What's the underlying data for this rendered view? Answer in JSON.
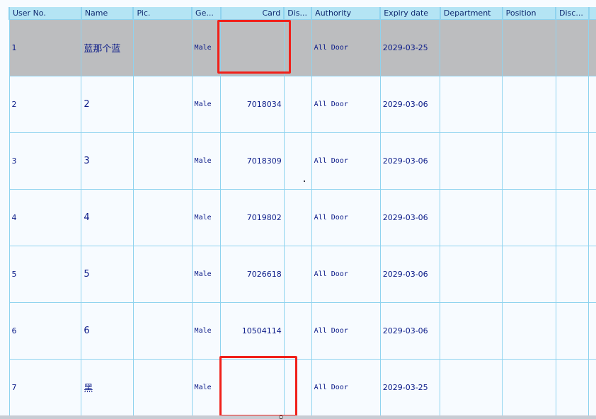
{
  "columns": [
    "User No.",
    "Name",
    "Pic.",
    "Ge...",
    "Card",
    "Dis...",
    "Authority",
    "Expiry date",
    "Department",
    "Position",
    "Disc..."
  ],
  "rows": [
    {
      "no": "1",
      "name": "蓝那个蓝",
      "pic": "",
      "gender": "Male",
      "card": "",
      "dis": "",
      "authority": "All Door",
      "expiry": "2029-03-25",
      "department": "",
      "position": "",
      "disc": "",
      "selected": true
    },
    {
      "no": "2",
      "name": "2",
      "pic": "",
      "gender": "Male",
      "card": "7018034",
      "dis": "",
      "authority": "All Door",
      "expiry": "2029-03-06",
      "department": "",
      "position": "",
      "disc": ""
    },
    {
      "no": "3",
      "name": "3",
      "pic": "",
      "gender": "Male",
      "card": "7018309",
      "dis": "",
      "authority": "All Door",
      "expiry": "2029-03-06",
      "department": "",
      "position": "",
      "disc": ""
    },
    {
      "no": "4",
      "name": "4",
      "pic": "",
      "gender": "Male",
      "card": "7019802",
      "dis": "",
      "authority": "All Door",
      "expiry": "2029-03-06",
      "department": "",
      "position": "",
      "disc": ""
    },
    {
      "no": "5",
      "name": "5",
      "pic": "",
      "gender": "Male",
      "card": "7026618",
      "dis": "",
      "authority": "All Door",
      "expiry": "2029-03-06",
      "department": "",
      "position": "",
      "disc": ""
    },
    {
      "no": "6",
      "name": "6",
      "pic": "",
      "gender": "Male",
      "card": "10504114",
      "dis": "",
      "authority": "All Door",
      "expiry": "2029-03-06",
      "department": "",
      "position": "",
      "disc": ""
    },
    {
      "no": "7",
      "name": "黑",
      "pic": "",
      "gender": "Male",
      "card": "",
      "dis": "",
      "authority": "All Door",
      "expiry": "2029-03-25",
      "department": "",
      "position": "",
      "disc": ""
    }
  ],
  "colors": {
    "header": "#b4e4f4",
    "selected_row": "#bcbdbf",
    "grid_line": "#8fd3ef",
    "highlight": "#f0201a",
    "text": "#0a1a88"
  }
}
